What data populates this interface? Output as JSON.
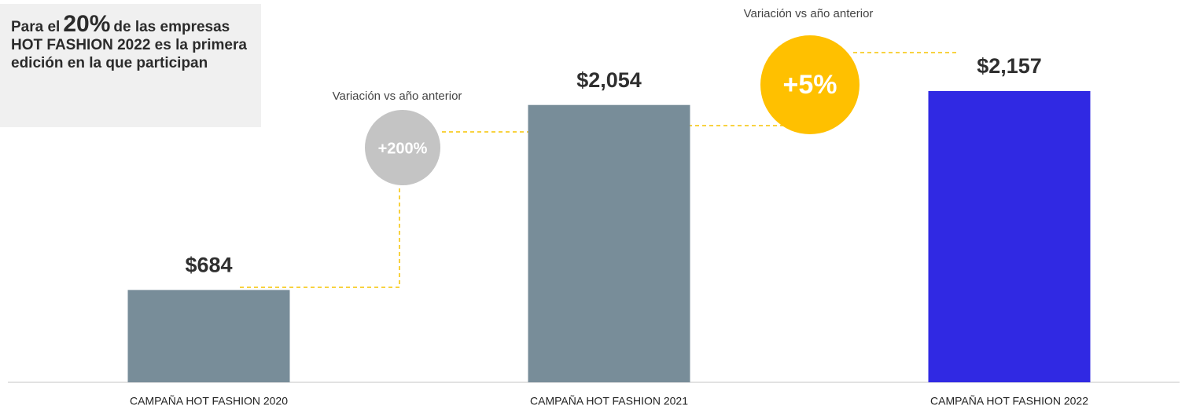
{
  "note": [
    "Para el",
    "20%",
    "de las empresas HOT FASHION 2022 es la primera edición en la que participan"
  ],
  "chart_data": {
    "type": "bar",
    "categories": [
      "CAMPAÑA HOT FASHION 2020",
      "CAMPAÑA HOT FASHION 2021",
      "CAMPAÑA HOT FASHION 2022"
    ],
    "values": [
      684,
      2054,
      2157
    ],
    "value_labels": [
      "$684",
      "$2,054",
      "$2,157"
    ],
    "colors": [
      "#788d99",
      "#788d99",
      "#3029e3"
    ],
    "annotations": [
      {
        "label": "Variación vs año anterior",
        "value": 200,
        "value_label": "+200%",
        "color": "#c4c4c4"
      },
      {
        "label": "Variación vs año anterior",
        "value": 5,
        "value_label": "+5%",
        "color": "#ffc000"
      }
    ]
  }
}
